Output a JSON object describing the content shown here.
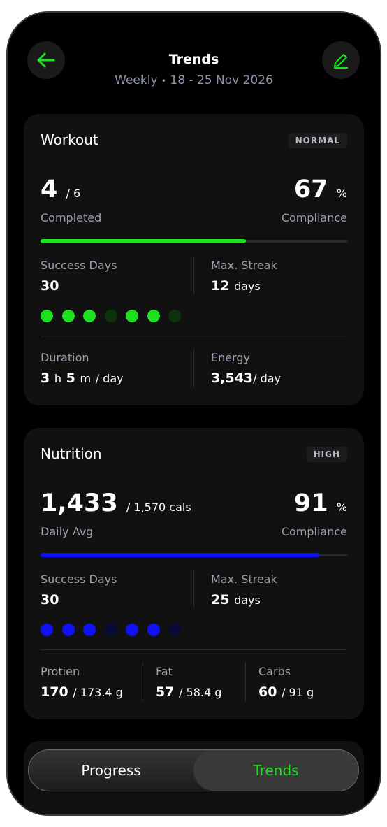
{
  "header": {
    "title": "Trends",
    "period": "Weekly",
    "separator": "•",
    "dates": "18 - 25 Nov 2026"
  },
  "workout": {
    "title": "Workout",
    "badge": "NORMAL",
    "color": "#1fe01f",
    "dim_color": "#0c330c",
    "main_value": 4,
    "main_total": "/ 6",
    "main_label": "Completed",
    "compliance": 67,
    "compliance_unit": "%",
    "compliance_label": "Compliance",
    "success_days_label": "Success Days",
    "success_days": 30,
    "max_streak_label": "Max. Streak",
    "max_streak": 12,
    "max_streak_unit": "days",
    "days": [
      true,
      true,
      true,
      false,
      true,
      true,
      false
    ],
    "duration_label": "Duration",
    "duration_h": 3,
    "h_unit": "h",
    "duration_m": 5,
    "m_unit": "m",
    "per_day": "/ day",
    "energy_label": "Energy",
    "energy": "3,543"
  },
  "nutrition": {
    "title": "Nutrition",
    "badge": "HIGH",
    "color": "#1010f5",
    "dim_color": "#0a0a38",
    "main_value": "1,433",
    "main_total": "/ 1,570 cals",
    "main_label": "Daily Avg",
    "compliance": 91,
    "compliance_unit": "%",
    "compliance_label": "Compliance",
    "success_days_label": "Success Days",
    "success_days": 30,
    "max_streak_label": "Max. Streak",
    "max_streak": 25,
    "max_streak_unit": "days",
    "days": [
      true,
      true,
      true,
      false,
      true,
      true,
      false
    ],
    "macros": [
      {
        "label": "Protien",
        "value": 170,
        "target": "/ 173.4 g"
      },
      {
        "label": "Fat",
        "value": 57,
        "target": "/ 58.4 g"
      },
      {
        "label": "Carbs",
        "value": 60,
        "target": "/ 91 g"
      }
    ]
  },
  "tabs": {
    "items": [
      "Progress",
      "Trends"
    ],
    "active": 1
  }
}
